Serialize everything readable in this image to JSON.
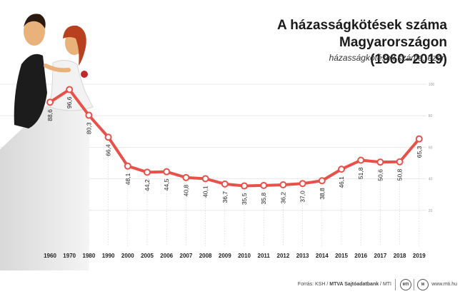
{
  "chart_data": {
    "type": "line",
    "title": "A házasságkötések száma Magyarországon",
    "title_line2": "(1960–2019)",
    "ylabel": "házasságkötések száma, ezer",
    "categories": [
      "1960",
      "1970",
      "1980",
      "1990",
      "2000",
      "2005",
      "2006",
      "2007",
      "2008",
      "2009",
      "2010",
      "2011",
      "2012",
      "2013",
      "2014",
      "2015",
      "2016",
      "2017",
      "2018",
      "2019"
    ],
    "values": [
      88.6,
      96.6,
      80.3,
      66.4,
      48.1,
      44.2,
      44.5,
      40.8,
      40.1,
      36.7,
      35.5,
      35.8,
      36.2,
      37.0,
      38.8,
      46.1,
      51.8,
      50.6,
      50.8,
      65.3
    ],
    "value_labels": [
      "88,6",
      "96,6",
      "80,3",
      "66,4",
      "48,1",
      "44,2",
      "44,5",
      "40,8",
      "40,1",
      "36,7",
      "35,5",
      "35,8",
      "36,2",
      "37,0",
      "38,8",
      "46,1",
      "51,8",
      "50,6",
      "50,8",
      "65,3"
    ],
    "y_ticks": [
      20,
      40,
      60,
      80,
      100
    ],
    "ylim": [
      0,
      100
    ],
    "grid": true,
    "line_color": "#e8504a"
  },
  "footer": {
    "source_prefix": "Forrás: KSH / ",
    "source_bold": "MTVA Sajtóadatbank",
    "source_suffix": " / MTI",
    "url": "www.mti.hu"
  }
}
